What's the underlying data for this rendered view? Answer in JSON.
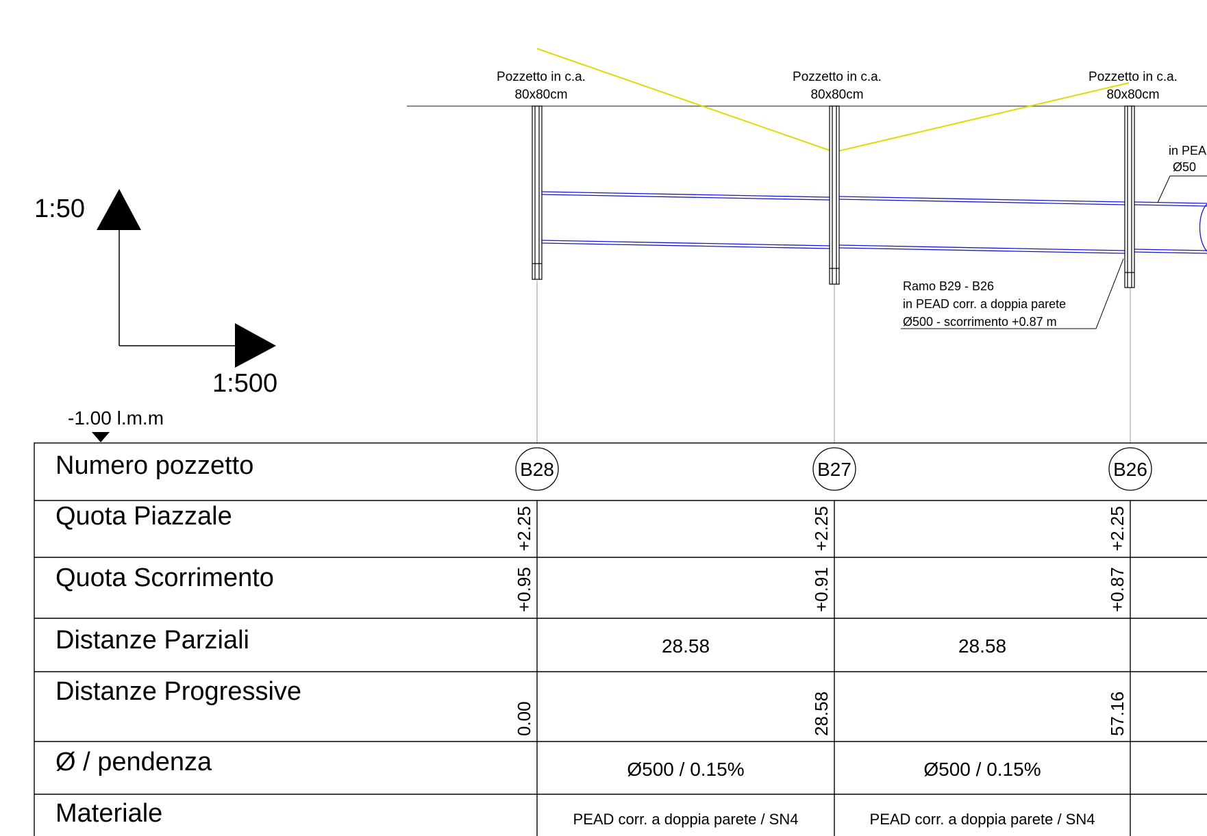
{
  "scale": {
    "vertical": "1:50",
    "horizontal": "1:500",
    "datum": "-1.00 l.m.m"
  },
  "manholes": [
    {
      "id": "B28",
      "label_line1": "Pozzetto in c.a.",
      "label_line2": "80x80cm",
      "quota_piazzale": "+2.25",
      "quota_scorrimento": "+0.95",
      "distanza_progressiva": "0.00"
    },
    {
      "id": "B27",
      "label_line1": "Pozzetto in c.a.",
      "label_line2": "80x80cm",
      "quota_piazzale": "+2.25",
      "quota_scorrimento": "+0.91",
      "distanza_progressiva": "28.58"
    },
    {
      "id": "B26",
      "label_line1": "Pozzetto in c.a.",
      "label_line2": "80x80cm",
      "quota_piazzale": "+2.25",
      "quota_scorrimento": "+0.87",
      "distanza_progressiva": "57.16"
    }
  ],
  "pipe_note": {
    "line1": "Ramo B29 - B26",
    "line2": "in PEAD corr. a doppia parete",
    "line3": "Ø500 - scorrimento +0.87 m"
  },
  "cut_note": {
    "line1": "in PEA",
    "line2": "Ø50"
  },
  "table": {
    "rows": [
      {
        "label": "Numero pozzetto"
      },
      {
        "label": "Quota Piazzale"
      },
      {
        "label": "Quota Scorrimento"
      },
      {
        "label": "Distanze Parziali"
      },
      {
        "label": "Distanze Progressive"
      },
      {
        "label": "Ø / pendenza"
      },
      {
        "label": "Materiale"
      }
    ],
    "spans": [
      {
        "distanza_parziale": "28.58",
        "diametro_pendenza": "Ø500 / 0.15%",
        "materiale": "PEAD corr. a doppia parete / SN4"
      },
      {
        "distanza_parziale": "28.58",
        "diametro_pendenza": "Ø500 / 0.15%",
        "materiale": "PEAD corr. a doppia parete / SN4"
      }
    ]
  },
  "colors": {
    "pipe": "#1515d6",
    "terrain": "#e4d800",
    "line": "#000000",
    "guide": "#9a9a9a"
  }
}
